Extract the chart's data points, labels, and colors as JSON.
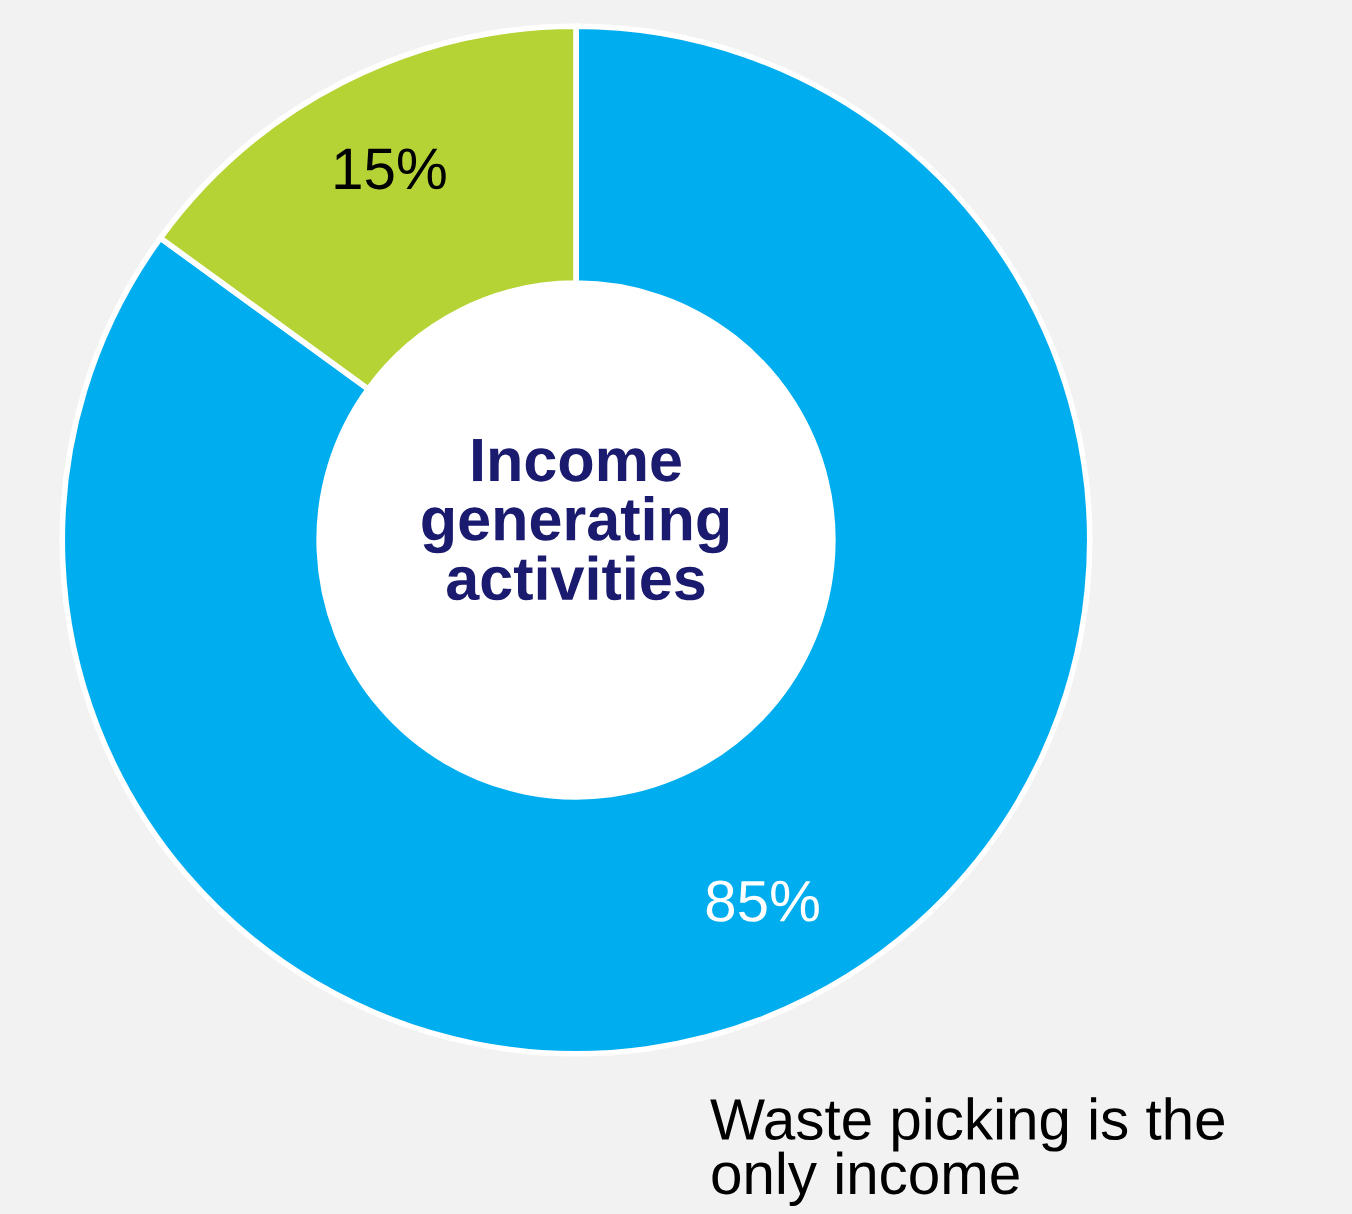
{
  "chart_data": {
    "type": "donut",
    "title": "Income generating activities",
    "categories": [
      "Waste picking is the only income",
      null
    ],
    "values": [
      85,
      15
    ],
    "colors": [
      "#00aeef",
      "#b5d334"
    ],
    "value_labels": [
      "85%",
      "15%"
    ]
  }
}
